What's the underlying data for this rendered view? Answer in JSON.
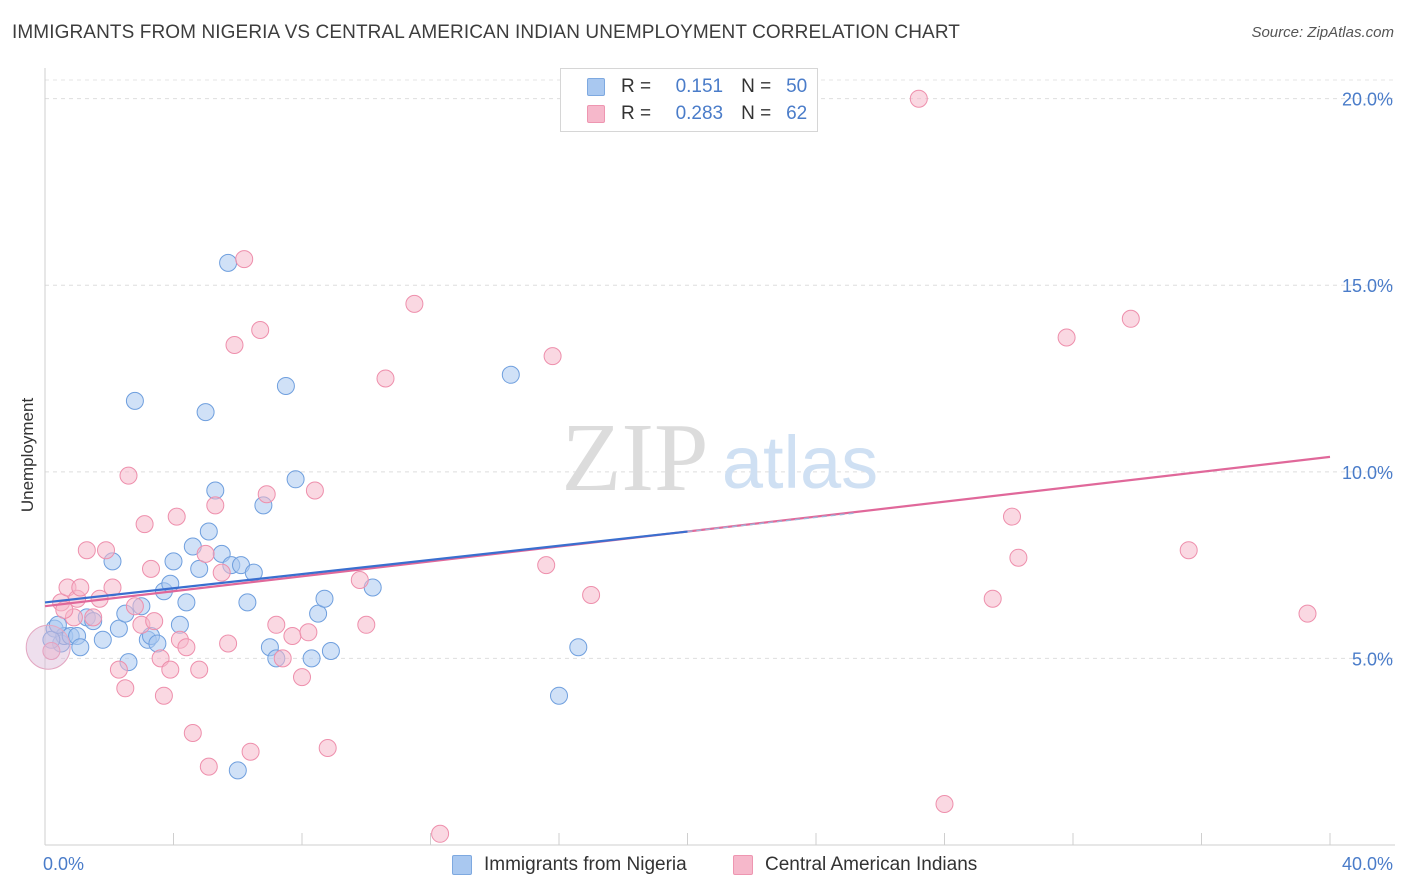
{
  "header": {
    "title": "IMMIGRANTS FROM NIGERIA VS CENTRAL AMERICAN INDIAN UNEMPLOYMENT CORRELATION CHART",
    "source": "Source: ZipAtlas.com"
  },
  "watermark": {
    "zip": "ZIP",
    "atlas": "atlas"
  },
  "legend": {
    "rows": [
      {
        "r_label": "R =",
        "r_value": "0.151",
        "n_label": "N =",
        "n_value": "50",
        "color": "#a9c8f0"
      },
      {
        "r_label": "R =",
        "r_value": "0.283",
        "n_label": "N =",
        "n_value": "62",
        "color": "#f6b8cb"
      }
    ]
  },
  "bottom_legend": {
    "items": [
      {
        "label": "Immigrants from Nigeria",
        "color": "#a9c8f0"
      },
      {
        "label": "Central American Indians",
        "color": "#f6b8cb"
      }
    ]
  },
  "chart_data": {
    "type": "scatter",
    "title": "IMMIGRANTS FROM NIGERIA VS CENTRAL AMERICAN INDIAN UNEMPLOYMENT CORRELATION CHART",
    "xlabel": "",
    "ylabel": "Unemployment",
    "xlim": [
      0,
      40
    ],
    "ylim": [
      0,
      20.5
    ],
    "x_tick_labels": [
      {
        "value": 0,
        "label": "0.0%"
      },
      {
        "value": 40,
        "label": "40.0%"
      }
    ],
    "y_tick_labels": [
      {
        "value": 5,
        "label": "5.0%"
      },
      {
        "value": 10,
        "label": "10.0%"
      },
      {
        "value": 15,
        "label": "15.0%"
      },
      {
        "value": 20,
        "label": "20.0%"
      }
    ],
    "grid": true,
    "legend_position": "top-center",
    "series": [
      {
        "name": "Immigrants from Nigeria",
        "color": "#a9c8f0",
        "stroke": "#6f9fde",
        "line_color": "#3a6fcf",
        "trend": {
          "x": [
            0,
            20
          ],
          "y": [
            6.5,
            8.4
          ],
          "dashed_extension_to": 25.2
        },
        "points": [
          [
            0.3,
            5.8
          ],
          [
            0.5,
            5.4
          ],
          [
            0.6,
            5.6
          ],
          [
            0.8,
            5.6
          ],
          [
            1.0,
            5.6
          ],
          [
            1.1,
            5.3
          ],
          [
            1.3,
            6.1
          ],
          [
            1.5,
            6.0
          ],
          [
            1.8,
            5.5
          ],
          [
            2.1,
            7.6
          ],
          [
            2.3,
            5.8
          ],
          [
            2.5,
            6.2
          ],
          [
            2.6,
            4.9
          ],
          [
            2.8,
            11.9
          ],
          [
            3.0,
            6.4
          ],
          [
            3.2,
            5.5
          ],
          [
            3.3,
            5.6
          ],
          [
            3.5,
            5.4
          ],
          [
            3.7,
            6.8
          ],
          [
            3.9,
            7.0
          ],
          [
            4.0,
            7.6
          ],
          [
            4.2,
            5.9
          ],
          [
            4.4,
            6.5
          ],
          [
            4.6,
            8.0
          ],
          [
            4.8,
            7.4
          ],
          [
            5.0,
            11.6
          ],
          [
            5.1,
            8.4
          ],
          [
            5.3,
            9.5
          ],
          [
            5.5,
            7.8
          ],
          [
            5.7,
            15.6
          ],
          [
            5.8,
            7.5
          ],
          [
            6.0,
            2.0
          ],
          [
            6.1,
            7.5
          ],
          [
            6.3,
            6.5
          ],
          [
            6.5,
            7.3
          ],
          [
            6.8,
            9.1
          ],
          [
            7.0,
            5.3
          ],
          [
            7.2,
            5.0
          ],
          [
            7.5,
            12.3
          ],
          [
            7.8,
            9.8
          ],
          [
            8.3,
            5.0
          ],
          [
            8.5,
            6.2
          ],
          [
            8.7,
            6.6
          ],
          [
            8.9,
            5.2
          ],
          [
            10.2,
            6.9
          ],
          [
            14.5,
            12.6
          ],
          [
            16.0,
            4.0
          ],
          [
            16.6,
            5.3
          ],
          [
            0.2,
            5.5
          ],
          [
            0.4,
            5.9
          ]
        ]
      },
      {
        "name": "Central American Indians",
        "color": "#f6b8cb",
        "stroke": "#ee8fac",
        "line_color": "#e0689a",
        "trend": {
          "x": [
            0,
            40
          ],
          "y": [
            6.4,
            10.4
          ]
        },
        "points": [
          [
            0.2,
            5.2
          ],
          [
            0.5,
            6.5
          ],
          [
            0.7,
            6.9
          ],
          [
            0.9,
            6.1
          ],
          [
            1.0,
            6.6
          ],
          [
            1.1,
            6.9
          ],
          [
            1.3,
            7.9
          ],
          [
            1.5,
            6.1
          ],
          [
            1.7,
            6.6
          ],
          [
            1.9,
            7.9
          ],
          [
            2.1,
            6.9
          ],
          [
            2.3,
            4.7
          ],
          [
            2.5,
            4.2
          ],
          [
            2.6,
            9.9
          ],
          [
            2.8,
            6.4
          ],
          [
            3.0,
            5.9
          ],
          [
            3.1,
            8.6
          ],
          [
            3.3,
            7.4
          ],
          [
            3.4,
            6.0
          ],
          [
            3.6,
            5.0
          ],
          [
            3.7,
            4.0
          ],
          [
            3.9,
            4.7
          ],
          [
            4.1,
            8.8
          ],
          [
            4.2,
            5.5
          ],
          [
            4.4,
            5.3
          ],
          [
            4.6,
            3.0
          ],
          [
            4.8,
            4.7
          ],
          [
            5.0,
            7.8
          ],
          [
            5.1,
            2.1
          ],
          [
            5.3,
            9.1
          ],
          [
            5.5,
            7.3
          ],
          [
            5.7,
            5.4
          ],
          [
            5.9,
            13.4
          ],
          [
            6.2,
            15.7
          ],
          [
            6.4,
            2.5
          ],
          [
            6.7,
            13.8
          ],
          [
            6.9,
            9.4
          ],
          [
            7.2,
            5.9
          ],
          [
            7.4,
            5.0
          ],
          [
            7.7,
            5.6
          ],
          [
            8.0,
            4.5
          ],
          [
            8.2,
            5.7
          ],
          [
            8.4,
            9.5
          ],
          [
            8.8,
            2.6
          ],
          [
            9.8,
            7.1
          ],
          [
            10.0,
            5.9
          ],
          [
            10.6,
            12.5
          ],
          [
            11.5,
            14.5
          ],
          [
            12.3,
            0.3
          ],
          [
            15.6,
            7.5
          ],
          [
            15.8,
            13.1
          ],
          [
            17.0,
            6.7
          ],
          [
            27.2,
            20.0
          ],
          [
            28.0,
            1.1
          ],
          [
            29.5,
            6.6
          ],
          [
            30.1,
            8.8
          ],
          [
            30.3,
            7.7
          ],
          [
            31.8,
            13.6
          ],
          [
            33.8,
            14.1
          ],
          [
            35.6,
            7.9
          ],
          [
            39.3,
            6.2
          ],
          [
            0.6,
            6.3
          ]
        ]
      }
    ]
  }
}
